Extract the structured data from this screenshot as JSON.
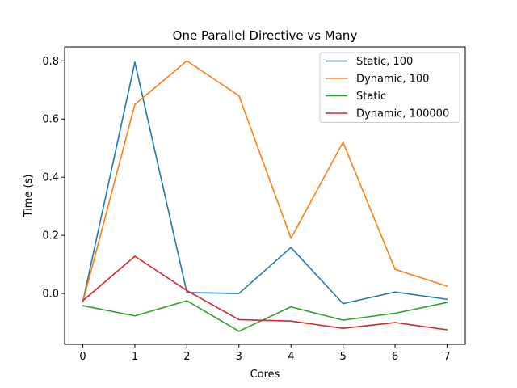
{
  "chart_data": {
    "type": "line",
    "title": "One Parallel Directive vs Many",
    "xlabel": "Cores",
    "ylabel": "Time (s)",
    "x": [
      0,
      1,
      2,
      3,
      4,
      5,
      6,
      7
    ],
    "xlim": [
      -0.35,
      7.35
    ],
    "ylim": [
      -0.175,
      0.848
    ],
    "xticks": [
      0,
      1,
      2,
      3,
      4,
      5,
      6,
      7
    ],
    "yticks": [
      0.0,
      0.2,
      0.4,
      0.6,
      0.8
    ],
    "ytick_labels": [
      "0.0",
      "0.2",
      "0.4",
      "0.6",
      "0.8"
    ],
    "grid": false,
    "legend_position": "top-right",
    "series": [
      {
        "name": "Static, 100",
        "color": "#1f77b4",
        "values": [
          -0.028,
          0.795,
          0.003,
          0.0,
          0.158,
          -0.035,
          0.005,
          -0.02
        ]
      },
      {
        "name": "Dynamic, 100",
        "color": "#ff7f0e",
        "values": [
          -0.03,
          0.65,
          0.8,
          0.68,
          0.19,
          0.52,
          0.083,
          0.025
        ]
      },
      {
        "name": "Static",
        "color": "#2ca02c",
        "values": [
          -0.042,
          -0.077,
          -0.025,
          -0.13,
          -0.046,
          -0.092,
          -0.068,
          -0.031
        ]
      },
      {
        "name": "Dynamic, 100000",
        "color": "#d62728",
        "values": [
          -0.025,
          0.128,
          0.01,
          -0.09,
          -0.095,
          -0.12,
          -0.1,
          -0.125
        ]
      }
    ]
  }
}
